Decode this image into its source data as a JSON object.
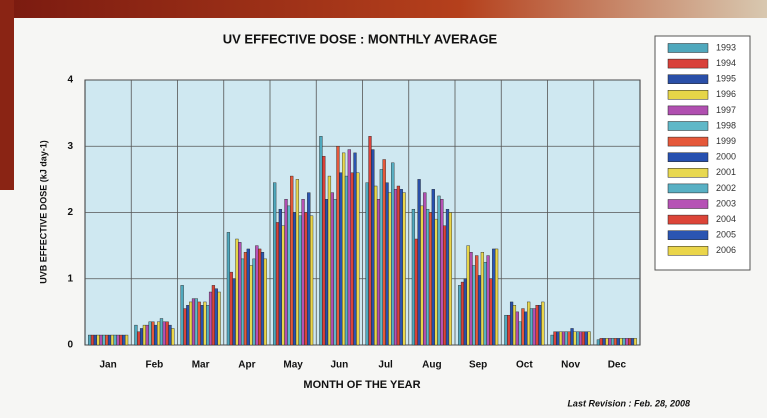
{
  "chart_data": {
    "type": "bar",
    "title": "UV EFFECTIVE DOSE : MONTHLY AVERAGE",
    "x_label": "MONTH OF THE YEAR",
    "y_label": "UVB EFFECTIVE DOSE (kJ day-1)",
    "footnote": "Last Revision : Feb. 28, 2008",
    "categories": [
      "Jan",
      "Feb",
      "Mar",
      "Apr",
      "May",
      "Jun",
      "Jul",
      "Aug",
      "Sep",
      "Oct",
      "Nov",
      "Dec"
    ],
    "ylim": [
      0,
      4
    ],
    "yticks": [
      0,
      1,
      2,
      3,
      4
    ],
    "grid": true,
    "legend": "right",
    "series": [
      {
        "name": "1993",
        "color": "#4fa8bd",
        "values": [
          0.15,
          0.3,
          0.9,
          1.7,
          2.45,
          3.15,
          2.45,
          2.05,
          0.9,
          0.45,
          0.15,
          0.08
        ]
      },
      {
        "name": "1994",
        "color": "#d9413a",
        "values": [
          0.15,
          0.2,
          0.55,
          1.1,
          1.85,
          2.85,
          3.15,
          1.6,
          0.95,
          0.45,
          0.2,
          0.1
        ]
      },
      {
        "name": "1995",
        "color": "#2a4fa8",
        "values": [
          0.15,
          0.25,
          0.6,
          1.0,
          2.05,
          2.2,
          2.95,
          2.5,
          1.0,
          0.65,
          0.2,
          0.1
        ]
      },
      {
        "name": "1996",
        "color": "#e6d548",
        "values": [
          0.15,
          0.3,
          0.65,
          1.6,
          1.8,
          2.55,
          2.4,
          2.1,
          1.5,
          0.6,
          0.2,
          0.1
        ]
      },
      {
        "name": "1997",
        "color": "#b04fb0",
        "values": [
          0.15,
          0.3,
          0.7,
          1.55,
          2.2,
          2.3,
          2.2,
          2.3,
          1.4,
          0.5,
          0.2,
          0.1
        ]
      },
      {
        "name": "1998",
        "color": "#5fb8c8",
        "values": [
          0.15,
          0.35,
          0.7,
          1.3,
          2.1,
          2.2,
          2.65,
          2.05,
          1.2,
          0.35,
          0.2,
          0.1
        ]
      },
      {
        "name": "1999",
        "color": "#e5583a",
        "values": [
          0.15,
          0.35,
          0.65,
          1.4,
          2.55,
          3.0,
          2.8,
          2.0,
          1.35,
          0.55,
          0.2,
          0.1
        ]
      },
      {
        "name": "2000",
        "color": "#2650b0",
        "values": [
          0.15,
          0.3,
          0.6,
          1.45,
          2.0,
          2.6,
          2.45,
          2.35,
          1.05,
          0.5,
          0.25,
          0.1
        ]
      },
      {
        "name": "2001",
        "color": "#e8d850",
        "values": [
          0.15,
          0.35,
          0.65,
          1.2,
          2.5,
          2.9,
          2.3,
          1.9,
          1.4,
          0.65,
          0.2,
          0.1
        ]
      },
      {
        "name": "2002",
        "color": "#58b0c4",
        "values": [
          0.15,
          0.4,
          0.6,
          1.3,
          1.95,
          2.55,
          2.75,
          2.25,
          1.25,
          0.55,
          0.2,
          0.1
        ]
      },
      {
        "name": "2003",
        "color": "#b652b5",
        "values": [
          0.15,
          0.35,
          0.8,
          1.5,
          2.2,
          2.95,
          2.35,
          2.2,
          1.35,
          0.55,
          0.2,
          0.1
        ]
      },
      {
        "name": "2004",
        "color": "#dc4438",
        "values": [
          0.15,
          0.35,
          0.9,
          1.45,
          2.0,
          2.6,
          2.4,
          1.8,
          1.0,
          0.6,
          0.2,
          0.1
        ]
      },
      {
        "name": "2005",
        "color": "#2b55b2",
        "values": [
          0.15,
          0.3,
          0.85,
          1.4,
          2.3,
          2.9,
          2.35,
          2.05,
          1.45,
          0.6,
          0.2,
          0.1
        ]
      },
      {
        "name": "2006",
        "color": "#ead54a",
        "values": [
          0.15,
          0.25,
          0.8,
          1.3,
          1.95,
          2.6,
          2.3,
          2.0,
          1.45,
          0.65,
          0.2,
          0.1
        ]
      }
    ]
  }
}
